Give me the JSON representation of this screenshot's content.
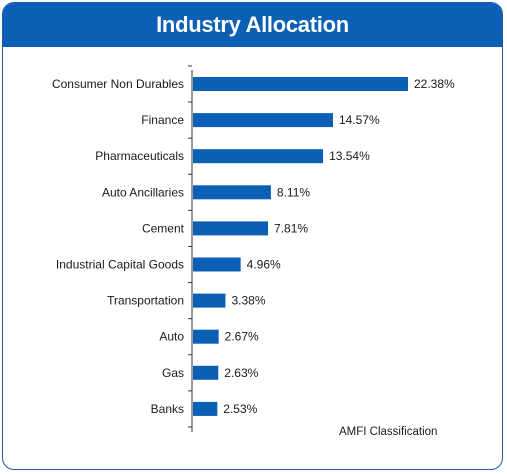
{
  "title": "Industry Allocation",
  "chart_data": {
    "type": "bar",
    "orientation": "horizontal",
    "title": "Industry Allocation",
    "categories": [
      "Consumer Non Durables",
      "Finance",
      "Pharmaceuticals",
      "Auto Ancillaries",
      "Cement",
      "Industrial Capital Goods",
      "Transportation",
      "Auto",
      "Gas",
      "Banks"
    ],
    "values": [
      22.38,
      14.57,
      13.54,
      8.11,
      7.81,
      4.96,
      3.38,
      2.67,
      2.63,
      2.53
    ],
    "data_labels": [
      "22.38%",
      "14.57%",
      "13.54%",
      "8.11%",
      "7.81%",
      "4.96%",
      "3.38%",
      "2.67%",
      "2.63%",
      "2.53%"
    ],
    "unit": "%",
    "bar_color": "#0b5fb4",
    "xlim": [
      0,
      22.38
    ],
    "grid": false,
    "legend": "none"
  },
  "source_note": "AMFI Classification",
  "colors": {
    "header": "#0b5fb4",
    "border": "#1f5aa8",
    "bar": "#0b5fb4"
  }
}
